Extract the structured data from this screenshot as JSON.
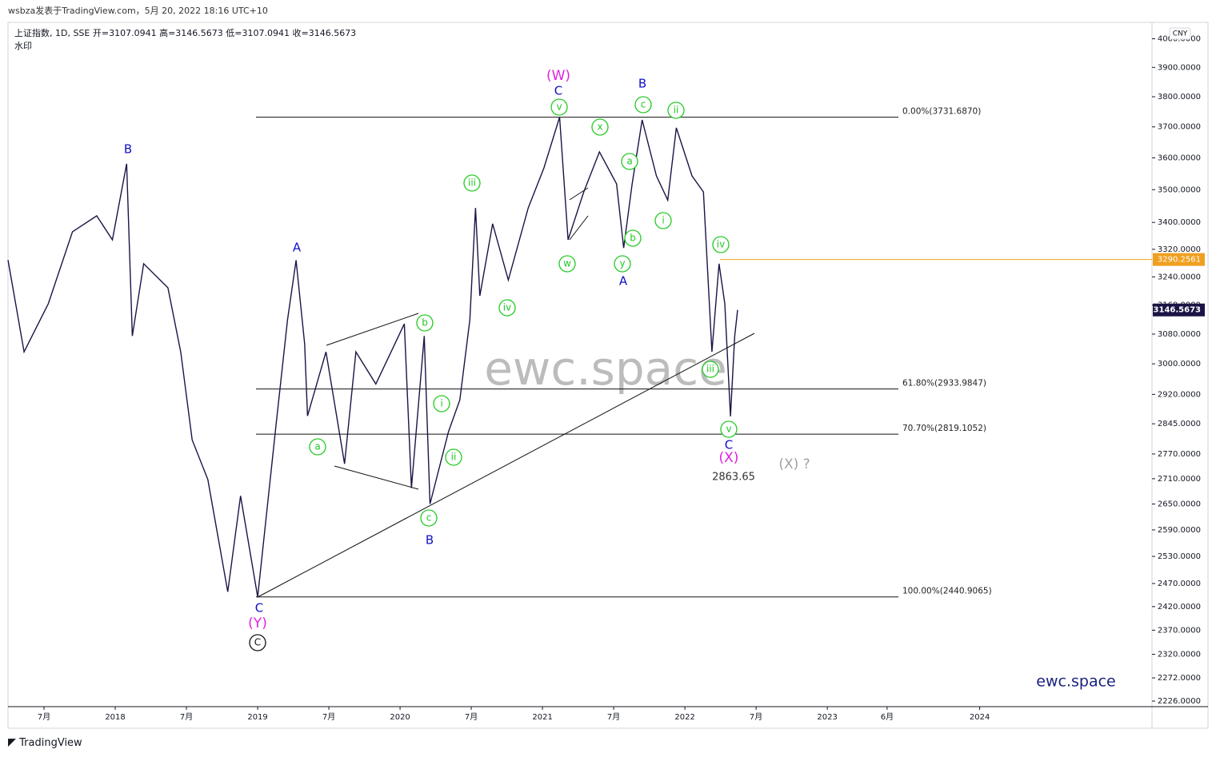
{
  "header": "wsbza发表于TradingView.com，5月 20, 2022 18:16 UTC+10",
  "footer": "TradingView",
  "chart_data": {
    "type": "line",
    "title": "上证指数, 1D, SSE",
    "ohlc": [
      "开=3107.0941",
      "高=3146.5673",
      "低=3107.0941",
      "收=3146.5673"
    ],
    "subtitle": "水印",
    "currency": "CNY",
    "watermark": "ewc.space",
    "brand": "ewc.space",
    "log_scale": true,
    "x": [
      2017.247,
      2017.36,
      2017.53,
      2017.7,
      2017.87,
      2017.98,
      2018.08,
      2018.12,
      2018.2,
      2018.37,
      2018.46,
      2018.54,
      2018.65,
      2018.79,
      2018.88,
      2019.0,
      2019.13,
      2019.21,
      2019.27,
      2019.33,
      2019.35,
      2019.48,
      2019.61,
      2019.69,
      2019.83,
      2020.03,
      2020.08,
      2020.17,
      2020.21,
      2020.34,
      2020.42,
      2020.49,
      2020.53,
      2020.56,
      2020.65,
      2020.76,
      2020.9,
      2021.01,
      2021.12,
      2021.18,
      2021.29,
      2021.4,
      2021.52,
      2021.57,
      2021.63,
      2021.7,
      2021.8,
      2021.88,
      2021.94,
      2022.05,
      2022.13,
      2022.19,
      2022.24,
      2022.28,
      2022.32,
      2022.35,
      2022.37
    ],
    "series": [
      {
        "name": "上证指数",
        "color": "#1a1446",
        "values": [
          3289,
          3032,
          3164,
          3372,
          3420,
          3348,
          3581,
          3075,
          3278,
          3209,
          3032,
          2805,
          2708,
          2452,
          2669,
          2441,
          2845,
          3119,
          3288,
          3054,
          2865,
          3032,
          2746,
          3032,
          2947,
          3108,
          2688,
          3075,
          2650,
          2825,
          2906,
          3119,
          3444,
          3186,
          3396,
          3231,
          3444,
          3568,
          3732,
          3348,
          3493,
          3619,
          3518,
          3324,
          3518,
          3723,
          3543,
          3468,
          3697,
          3543,
          3493,
          3032,
          3278,
          3164,
          2864,
          3075,
          3146.5673
        ]
      }
    ],
    "xlim": [
      2017.247,
      2025.28
    ],
    "xticks": [
      {
        "value": 2017.5,
        "label": "7月"
      },
      {
        "value": 2018,
        "label": "2018"
      },
      {
        "value": 2018.5,
        "label": "7月"
      },
      {
        "value": 2019,
        "label": "2019"
      },
      {
        "value": 2019.5,
        "label": "7月"
      },
      {
        "value": 2020,
        "label": "2020"
      },
      {
        "value": 2020.5,
        "label": "7月"
      },
      {
        "value": 2021,
        "label": "2021"
      },
      {
        "value": 2021.5,
        "label": "7月"
      },
      {
        "value": 2022,
        "label": "2022"
      },
      {
        "value": 2022.5,
        "label": "7月"
      },
      {
        "value": 2023,
        "label": "2023"
      },
      {
        "value": 2023.42,
        "label": "6月"
      },
      {
        "value": 2024.07,
        "label": "2024"
      }
    ],
    "ylim": [
      2215,
      4047
    ],
    "yticks": [
      {
        "value": 4000,
        "label": "4000.0000"
      },
      {
        "value": 3900,
        "label": "3900.0000"
      },
      {
        "value": 3800,
        "label": "3800.0000"
      },
      {
        "value": 3700,
        "label": "3700.0000"
      },
      {
        "value": 3600,
        "label": "3600.0000"
      },
      {
        "value": 3500,
        "label": "3500.0000"
      },
      {
        "value": 3400,
        "label": "3400.0000"
      },
      {
        "value": 3320,
        "label": "3320.0000"
      },
      {
        "value": 3240,
        "label": "3240.0000"
      },
      {
        "value": 3160,
        "label": "3160.0000"
      },
      {
        "value": 3080,
        "label": "3080.0000"
      },
      {
        "value": 3000,
        "label": "3000.0000"
      },
      {
        "value": 2920,
        "label": "2920.0000"
      },
      {
        "value": 2845,
        "label": "2845.0000"
      },
      {
        "value": 2770,
        "label": "2770.0000"
      },
      {
        "value": 2710,
        "label": "2710.0000"
      },
      {
        "value": 2650,
        "label": "2650.0000"
      },
      {
        "value": 2590,
        "label": "2590.0000"
      },
      {
        "value": 2530,
        "label": "2530.0000"
      },
      {
        "value": 2470,
        "label": "2470.0000"
      },
      {
        "value": 2420,
        "label": "2420.0000"
      },
      {
        "value": 2370,
        "label": "2370.0000"
      },
      {
        "value": 2320,
        "label": "2320.0000"
      },
      {
        "value": 2272,
        "label": "2272.0000"
      },
      {
        "value": 2226,
        "label": "2226.0000"
      }
    ],
    "fib_levels": [
      {
        "value": 3731.687,
        "label": "0.00%(3731.6870)"
      },
      {
        "value": 2933.9847,
        "label": "61.80%(2933.9847)"
      },
      {
        "value": 2819.1052,
        "label": "70.70%(2819.1052)"
      },
      {
        "value": 2440.9065,
        "label": "100.00%(2440.9065)"
      }
    ],
    "marked_price": {
      "value": 3290.2561,
      "label": "3290.2561",
      "color": "#f0a020"
    },
    "last_price": {
      "value": 3146.5673,
      "label": "3146.5673"
    },
    "wave_labels": [
      {
        "text": "(W)",
        "color": "#e020e0"
      },
      {
        "text": "C",
        "color": "#1010c8"
      },
      {
        "text": "v",
        "color": "#22c922",
        "circled": true
      },
      {
        "text": "B",
        "color": "#1010c8"
      },
      {
        "text": "c",
        "color": "#22c922",
        "circled": true
      },
      {
        "text": "ii",
        "color": "#22c922",
        "circled": true
      },
      {
        "text": "x",
        "color": "#22c922",
        "circled": true
      },
      {
        "text": "a",
        "color": "#22c922",
        "circled": true
      },
      {
        "text": "iii",
        "color": "#22c922",
        "circled": true
      },
      {
        "text": "b",
        "color": "#22c922",
        "circled": true
      },
      {
        "text": "i",
        "color": "#22c922",
        "circled": true
      },
      {
        "text": "y",
        "color": "#22c922",
        "circled": true
      },
      {
        "text": "A",
        "color": "#1010c8"
      },
      {
        "text": "w",
        "color": "#22c922",
        "circled": true
      },
      {
        "text": "iv",
        "color": "#22c922",
        "circled": true
      },
      {
        "text": "iv",
        "color": "#22c922",
        "circled": true
      },
      {
        "text": "iii",
        "color": "#22c922",
        "circled": true
      },
      {
        "text": "v",
        "color": "#22c922",
        "circled": true
      },
      {
        "text": "C",
        "color": "#1010c8"
      },
      {
        "text": "(X)",
        "color": "#e020e0"
      },
      {
        "text": "b",
        "color": "#22c922",
        "circled": true
      },
      {
        "text": "i",
        "color": "#22c922",
        "circled": true
      },
      {
        "text": "ii",
        "color": "#22c922",
        "circled": true
      },
      {
        "text": "a",
        "color": "#22c922",
        "circled": true
      },
      {
        "text": "c",
        "color": "#22c922",
        "circled": true
      },
      {
        "text": "B",
        "color": "#1010c8"
      },
      {
        "text": "A",
        "color": "#1010c8"
      },
      {
        "text": "B",
        "color": "#1010c8"
      },
      {
        "text": "C",
        "color": "#1010c8"
      },
      {
        "text": "(Y)",
        "color": "#e020e0"
      },
      {
        "text": "C",
        "color": "#111111",
        "circled": true
      },
      {
        "text": "(X) ?",
        "color": "#a0a0a0"
      },
      {
        "text": "2863.65",
        "color": "#333333"
      }
    ]
  }
}
